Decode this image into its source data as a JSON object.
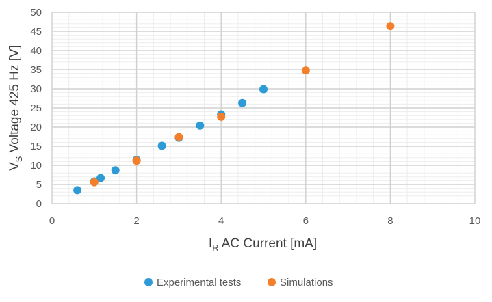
{
  "chart_data": {
    "type": "scatter",
    "xlabel_main": "I",
    "xlabel_sub": "R",
    "xlabel_rest": " AC Current [mA]",
    "ylabel_main": "V",
    "ylabel_sub": "S",
    "ylabel_rest": " Voltage 425 Hz [V]",
    "xlim": [
      0,
      10
    ],
    "ylim": [
      0,
      50
    ],
    "x_ticks": [
      0,
      2,
      4,
      6,
      8,
      10
    ],
    "y_ticks": [
      0,
      5,
      10,
      15,
      20,
      25,
      30,
      35,
      40,
      45,
      50
    ],
    "grid": true,
    "legend_position": "bottom",
    "series": [
      {
        "name": "Experimental tests",
        "color": "#2E9BD6",
        "points": [
          {
            "x": 0.6,
            "y": 3.5
          },
          {
            "x": 1.0,
            "y": 5.8
          },
          {
            "x": 1.15,
            "y": 6.7
          },
          {
            "x": 1.5,
            "y": 8.7
          },
          {
            "x": 2.0,
            "y": 11.4
          },
          {
            "x": 2.6,
            "y": 15.1
          },
          {
            "x": 3.0,
            "y": 17.2
          },
          {
            "x": 3.5,
            "y": 20.4
          },
          {
            "x": 4.0,
            "y": 23.3
          },
          {
            "x": 4.5,
            "y": 26.3
          },
          {
            "x": 5.0,
            "y": 29.9
          }
        ]
      },
      {
        "name": "Simulations",
        "color": "#F37F2A",
        "points": [
          {
            "x": 1.0,
            "y": 5.6
          },
          {
            "x": 2.0,
            "y": 11.2
          },
          {
            "x": 3.0,
            "y": 17.4
          },
          {
            "x": 4.0,
            "y": 22.7
          },
          {
            "x": 6.0,
            "y": 34.8
          },
          {
            "x": 8.0,
            "y": 46.4
          }
        ]
      }
    ]
  }
}
